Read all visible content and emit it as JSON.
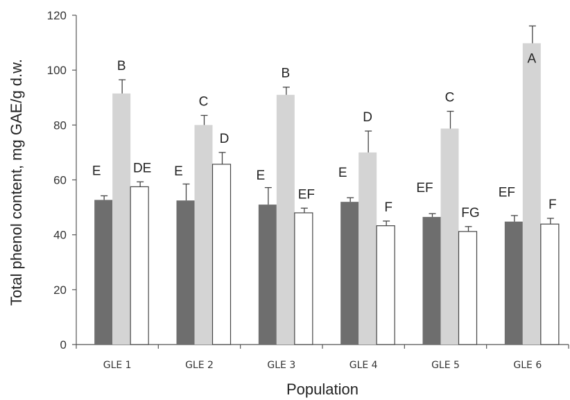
{
  "chart_data": {
    "type": "bar",
    "title": "",
    "xlabel": "Population",
    "ylabel": "Total phenol content, mg GAE/g d.w.",
    "ylim": [
      0,
      120
    ],
    "yticks": [
      0,
      20,
      40,
      60,
      80,
      100,
      120
    ],
    "categories": [
      "GLE 1",
      "GLE 2",
      "GLE 3",
      "GLE 4",
      "GLE 5",
      "GLE 6"
    ],
    "grid": false,
    "legend": "none",
    "series": [
      {
        "color": "#6e6e6e",
        "values": [
          52.7,
          52.5,
          51.0,
          52.0,
          46.5,
          44.8
        ],
        "errors": [
          1.5,
          6.0,
          6.2,
          1.5,
          1.2,
          2.2
        ],
        "labels": [
          "E",
          "E",
          "E",
          "E",
          "EF",
          "EF"
        ]
      },
      {
        "color": "#d4d4d4",
        "values": [
          91.5,
          80.0,
          91.0,
          70.0,
          78.7,
          109.8
        ],
        "errors": [
          5.0,
          3.5,
          2.8,
          7.8,
          6.3,
          6.3
        ],
        "labels": [
          "B",
          "C",
          "B",
          "D",
          "C",
          "A"
        ]
      },
      {
        "color": "#ffffff",
        "values": [
          57.5,
          65.7,
          48.0,
          43.3,
          41.2,
          43.9
        ],
        "errors": [
          1.8,
          4.3,
          1.7,
          1.7,
          1.8,
          2.1
        ],
        "labels": [
          "DE",
          "D",
          "EF",
          "F",
          "FG",
          "F"
        ]
      }
    ]
  }
}
